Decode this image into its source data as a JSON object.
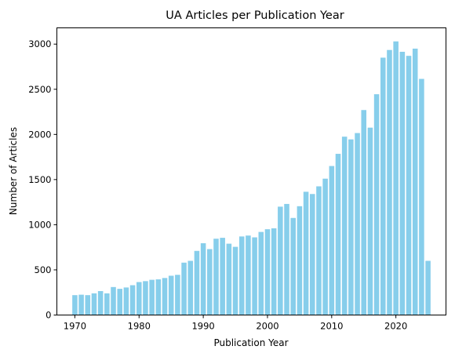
{
  "chart_data": {
    "type": "bar",
    "title": "UA Articles per Publication Year",
    "xlabel": "Publication Year",
    "ylabel": "Number of Articles",
    "x": [
      1970,
      1971,
      1972,
      1973,
      1974,
      1975,
      1976,
      1977,
      1978,
      1979,
      1980,
      1981,
      1982,
      1983,
      1984,
      1985,
      1986,
      1987,
      1988,
      1989,
      1990,
      1991,
      1992,
      1993,
      1994,
      1995,
      1996,
      1997,
      1998,
      1999,
      2000,
      2001,
      2002,
      2003,
      2004,
      2005,
      2006,
      2007,
      2008,
      2009,
      2010,
      2011,
      2012,
      2013,
      2014,
      2015,
      2016,
      2017,
      2018,
      2019,
      2020,
      2021,
      2022,
      2023,
      2024,
      2025
    ],
    "values": [
      220,
      225,
      220,
      240,
      265,
      240,
      310,
      290,
      305,
      330,
      365,
      375,
      390,
      395,
      410,
      435,
      445,
      580,
      600,
      710,
      795,
      730,
      845,
      855,
      790,
      755,
      870,
      880,
      860,
      920,
      950,
      960,
      1200,
      1230,
      1075,
      1205,
      1365,
      1340,
      1425,
      1510,
      1650,
      1785,
      1975,
      1945,
      2015,
      2270,
      2075,
      2445,
      2850,
      2935,
      3030,
      2915,
      2870,
      2950,
      2615,
      600
    ],
    "xticks": [
      1970,
      1980,
      1990,
      2000,
      2010,
      2020
    ],
    "yticks": [
      0,
      500,
      1000,
      1500,
      2000,
      2500,
      3000
    ],
    "xlim": [
      1967.2,
      2027.8
    ],
    "ylim": [
      0,
      3180
    ],
    "grid": false,
    "color": "#87ceeb"
  }
}
